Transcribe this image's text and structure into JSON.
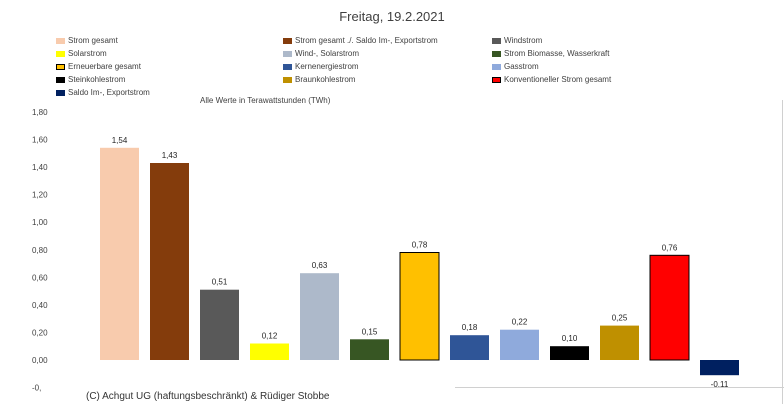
{
  "chart_data": {
    "type": "bar",
    "title": "Freitag, 19.2.2021",
    "subtitle": "Alle Werte in Terawattstunden (TWh)",
    "footer": "(C) Achgut UG (haftungsbeschränkt) & Rüdiger Stobbe",
    "ylim": [
      0,
      1.8
    ],
    "y_ticks": [
      "1,80",
      "1,60",
      "1,40",
      "1,20",
      "1,00",
      "0,80",
      "0,60",
      "0,40",
      "0,20",
      "0,00",
      "-0,"
    ],
    "categories": [
      "Strom gesamt",
      "Strom gesamt ./. Saldo Im-, Exportstrom",
      "Windstrom",
      "Solarstrom",
      "Wind-, Solarstrom",
      "Strom Biomasse, Wasserkraft",
      "Erneuerbare gesamt",
      "Kernenergiestrom",
      "Gasstrom",
      "Steinkohlestrom",
      "Braunkohlestrom",
      "Konventioneller Strom gesamt",
      "Saldo Im-, Exportstrom"
    ],
    "values": [
      1.54,
      1.43,
      0.51,
      0.12,
      0.63,
      0.15,
      0.78,
      0.18,
      0.22,
      0.1,
      0.25,
      0.76,
      -0.11
    ],
    "value_labels": [
      "1,54",
      "1,43",
      "0,51",
      "0,12",
      "0,63",
      "0,15",
      "0,78",
      "0,18",
      "0,22",
      "0,10",
      "0,25",
      "0,76",
      "-0,11"
    ],
    "colors": [
      "#f8cbad",
      "#843c0c",
      "#595959",
      "#ffff00",
      "#adb9ca",
      "#375623",
      "#ffc000",
      "#2f5597",
      "#8faadc",
      "#000000",
      "#bf9000",
      "#ff0000",
      "#002060"
    ],
    "outlined": [
      false,
      false,
      false,
      false,
      false,
      false,
      true,
      false,
      false,
      false,
      false,
      true,
      false
    ],
    "legend": [
      {
        "label": "Strom gesamt",
        "color": "#f8cbad"
      },
      {
        "label": "Strom gesamt ./. Saldo Im-, Exportstrom",
        "color": "#843c0c"
      },
      {
        "label": "Windstrom",
        "color": "#595959"
      },
      {
        "label": "Solarstrom",
        "color": "#ffff00"
      },
      {
        "label": "Wind-, Solarstrom",
        "color": "#adb9ca"
      },
      {
        "label": "Strom Biomasse, Wasserkraft",
        "color": "#375623"
      },
      {
        "label": "Erneuerbare gesamt",
        "color": "#ffc000"
      },
      {
        "label": "Kernenergiestrom",
        "color": "#2f5597"
      },
      {
        "label": "Gasstrom",
        "color": "#8faadc"
      },
      {
        "label": "Steinkohlestrom",
        "color": "#000000"
      },
      {
        "label": "Braunkohlestrom",
        "color": "#bf9000"
      },
      {
        "label": "Konventioneller Strom gesamt",
        "color": "#ff0000"
      },
      {
        "label": "Saldo Im-, Exportstrom",
        "color": "#002060"
      }
    ],
    "legend_position": "top",
    "grid": false
  }
}
